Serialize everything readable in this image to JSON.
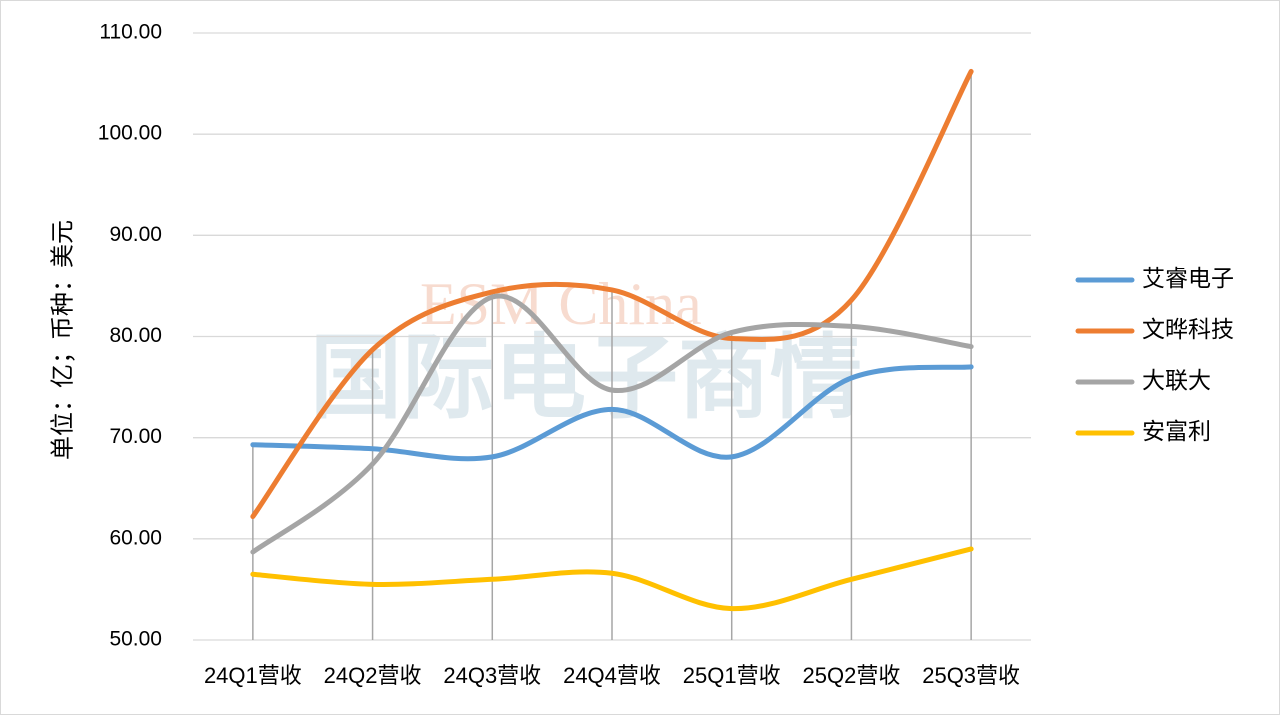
{
  "chart_data": {
    "type": "line",
    "y_label": "单位：亿；币种：美元",
    "watermark": [
      "ESM China",
      "国际电子商情"
    ],
    "categories": [
      "24Q1营收",
      "24Q2营收",
      "24Q3营收",
      "24Q4营收",
      "25Q1营收",
      "25Q2营收",
      "25Q3营收"
    ],
    "series": [
      {
        "name": "艾睿电子",
        "color": "#5b9bd5",
        "values": [
          69.3,
          68.9,
          68.1,
          72.8,
          68.1,
          75.9,
          77.0
        ]
      },
      {
        "name": "文晔科技",
        "color": "#ed7d31",
        "values": [
          62.2,
          78.7,
          84.4,
          84.6,
          79.8,
          83.6,
          106.2
        ]
      },
      {
        "name": "大联大",
        "color": "#a5a5a5",
        "values": [
          58.7,
          67.4,
          83.9,
          74.7,
          80.4,
          81.0,
          79.0
        ]
      },
      {
        "name": "安富利",
        "color": "#ffc000",
        "values": [
          56.5,
          55.5,
          56.0,
          56.6,
          53.1,
          56.0,
          59.0
        ]
      }
    ],
    "ylim": [
      50,
      110
    ],
    "yticks": [
      {
        "value": 50,
        "label": "50.00"
      },
      {
        "value": 60,
        "label": "60.00"
      },
      {
        "value": 70,
        "label": "70.00"
      },
      {
        "value": 80,
        "label": "80.00"
      },
      {
        "value": 90,
        "label": "90.00"
      },
      {
        "value": 100,
        "label": "100.00"
      },
      {
        "value": 110,
        "label": "110.00"
      }
    ],
    "grid": true,
    "drop_lines": true,
    "legend": "right"
  }
}
